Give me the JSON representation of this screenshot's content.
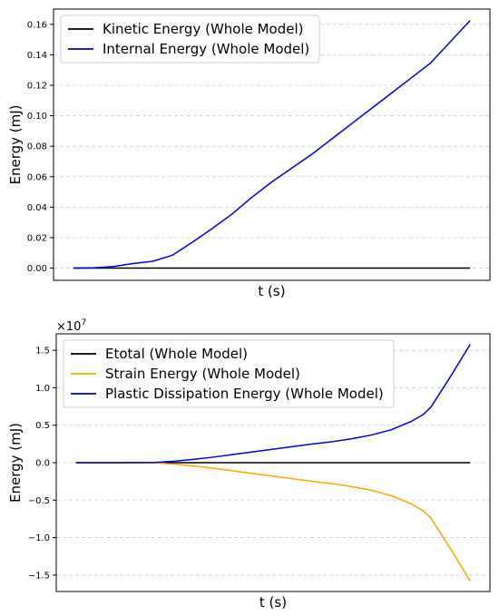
{
  "chart_data": [
    {
      "type": "line",
      "xlabel": "t (s)",
      "ylabel": "Energy (mJ)",
      "ylim": [
        -0.008,
        0.17
      ],
      "yticks": [
        0.0,
        0.02,
        0.04,
        0.06,
        0.08,
        0.1,
        0.12,
        0.14,
        0.16
      ],
      "ytick_labels": [
        "0.00",
        "0.02",
        "0.04",
        "0.06",
        "0.08",
        "0.10",
        "0.12",
        "0.14",
        "0.16"
      ],
      "xticks_visible": false,
      "xlim": [
        -0.05,
        1.05
      ],
      "grid": "horizontal dashed",
      "legend": "top-left",
      "series": [
        {
          "name": "Kinetic Energy (Whole Model)",
          "color": "#000000",
          "x": [
            0,
            0.1,
            0.2,
            0.3,
            0.4,
            0.5,
            0.6,
            0.7,
            0.8,
            0.9,
            1.0
          ],
          "y": [
            0,
            0,
            0,
            0,
            0,
            0,
            0,
            0,
            0,
            0,
            0
          ]
        },
        {
          "name": "Internal Energy (Whole Model)",
          "color": "#0000cc",
          "x": [
            0,
            0.05,
            0.1,
            0.15,
            0.2,
            0.25,
            0.3,
            0.35,
            0.4,
            0.45,
            0.5,
            0.55,
            0.6,
            0.65,
            0.7,
            0.75,
            0.8,
            0.85,
            0.9,
            0.95,
            1.0
          ],
          "y": [
            0,
            0.0002,
            0.001,
            0.003,
            0.0045,
            0.0085,
            0.017,
            0.026,
            0.0355,
            0.0465,
            0.0565,
            0.0655,
            0.0745,
            0.0845,
            0.0945,
            0.1045,
            0.1145,
            0.1245,
            0.1345,
            0.1485,
            0.1625
          ]
        }
      ]
    },
    {
      "type": "line",
      "xlabel": "t (s)",
      "ylabel": "Energy (mJ)",
      "offset_label": "×10",
      "offset_exp": "7",
      "ylim": [
        -1.72,
        1.72
      ],
      "yticks": [
        -1.5,
        -1.0,
        -0.5,
        0.0,
        0.5,
        1.0,
        1.5
      ],
      "ytick_labels": [
        "−1.5",
        "−1.0",
        "−0.5",
        "0.0",
        "0.5",
        "1.0",
        "1.5"
      ],
      "xticks_visible": false,
      "xlim": [
        -0.05,
        1.05
      ],
      "grid": "horizontal dashed",
      "legend": "top-left",
      "series": [
        {
          "name": "Etotal (Whole Model)",
          "color": "#000000",
          "x": [
            0,
            0.1,
            0.2,
            0.3,
            0.4,
            0.5,
            0.6,
            0.7,
            0.8,
            0.9,
            1.0
          ],
          "y": [
            0,
            0,
            0,
            0,
            0,
            0,
            0,
            0,
            0,
            0,
            0
          ]
        },
        {
          "name": "Strain Energy (Whole Model)",
          "color": "#f5a800",
          "x": [
            0,
            0.1,
            0.2,
            0.25,
            0.3,
            0.35,
            0.4,
            0.45,
            0.5,
            0.55,
            0.6,
            0.65,
            0.7,
            0.75,
            0.8,
            0.85,
            0.88,
            0.9,
            0.95,
            1.0
          ],
          "y": [
            0,
            0,
            -0.003,
            -0.02,
            -0.045,
            -0.075,
            -0.11,
            -0.145,
            -0.18,
            -0.215,
            -0.25,
            -0.28,
            -0.32,
            -0.37,
            -0.44,
            -0.55,
            -0.64,
            -0.74,
            -1.15,
            -1.58
          ]
        },
        {
          "name": "Plastic Dissipation Energy (Whole Model)",
          "color": "#0000cc",
          "x": [
            0,
            0.1,
            0.2,
            0.25,
            0.3,
            0.35,
            0.4,
            0.45,
            0.5,
            0.55,
            0.6,
            0.65,
            0.7,
            0.75,
            0.8,
            0.85,
            0.88,
            0.9,
            0.95,
            1.0
          ],
          "y": [
            0,
            0,
            0.003,
            0.02,
            0.045,
            0.075,
            0.11,
            0.145,
            0.18,
            0.215,
            0.25,
            0.28,
            0.32,
            0.37,
            0.44,
            0.55,
            0.64,
            0.74,
            1.15,
            1.58
          ]
        }
      ]
    }
  ]
}
